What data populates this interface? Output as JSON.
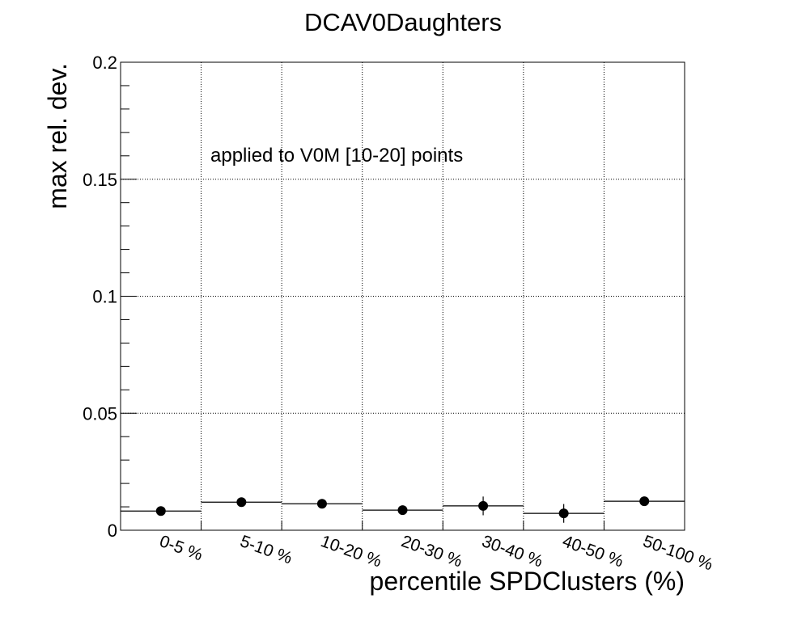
{
  "chart_data": {
    "type": "scatter",
    "title": "DCAV0Daughters",
    "xlabel": "percentile SPDClusters (%)",
    "ylabel": "max rel. dev.",
    "annotation": "applied to V0M [10-20] points",
    "categories": [
      "0-5 %",
      "5-10 %",
      "10-20 %",
      "20-30 %",
      "30-40 %",
      "40-50 %",
      "50-100 %"
    ],
    "series": [
      {
        "values": [
          0.0082,
          0.012,
          0.0113,
          0.0086,
          0.0104,
          0.0072,
          0.0124
        ],
        "errors": [
          0.001,
          0.0012,
          0.0012,
          0.001,
          0.004,
          0.004,
          0.001
        ],
        "bin_lines": [
          0.0082,
          0.012,
          0.0113,
          0.0086,
          0.0104,
          0.0072,
          0.0124
        ]
      }
    ],
    "ylim": [
      0,
      0.2
    ],
    "yticks": [
      {
        "value": 0,
        "label": "0"
      },
      {
        "value": 0.05,
        "label": "0.05"
      },
      {
        "value": 0.1,
        "label": "0.1"
      },
      {
        "value": 0.15,
        "label": "0.15"
      },
      {
        "value": 0.2,
        "label": "0.2"
      }
    ],
    "grid": true,
    "colors": {
      "marker": "#000000",
      "grid": "#000000",
      "background": "#ffffff"
    }
  }
}
